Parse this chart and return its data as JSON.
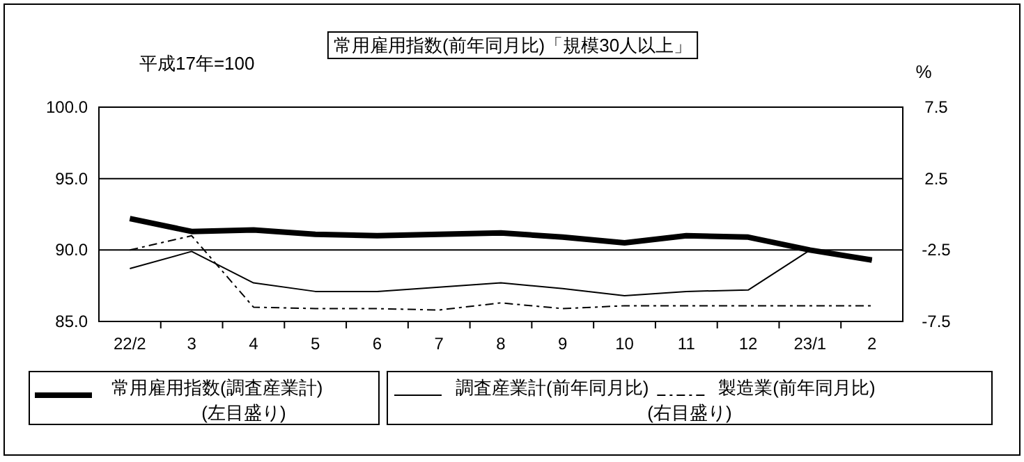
{
  "chart_data": {
    "type": "line",
    "title": "常用雇用指数(前年同月比)「規模30人以上」",
    "ylabel": "平成17年=100",
    "y2label": "%",
    "categories": [
      "22/2",
      "3",
      "4",
      "5",
      "6",
      "7",
      "8",
      "9",
      "10",
      "11",
      "12",
      "23/1",
      "2"
    ],
    "ylim": [
      85,
      100
    ],
    "yticks": [
      {
        "value": 85,
        "label": "85.0"
      },
      {
        "value": 90,
        "label": "90.0"
      },
      {
        "value": 95,
        "label": "95.0"
      },
      {
        "value": 100,
        "label": "100.0"
      }
    ],
    "y2lim": [
      -7.5,
      7.5
    ],
    "y2ticks": [
      -7.5,
      -2.5,
      2.5,
      7.5
    ],
    "grid": "y",
    "legend": "bottom",
    "marker": "none",
    "annotations": [
      "(左目盛り)",
      "(右目盛り)"
    ],
    "series": [
      {
        "name": "常用雇用指数(調査産業計)",
        "color": "#000000",
        "line_style": "solid",
        "values": [
          92.2,
          91.3,
          91.4,
          91.1,
          91.0,
          91.1,
          91.2,
          90.9,
          90.5,
          91.0,
          90.9,
          90.0,
          89.3
        ]
      },
      {
        "name": "調査産業計(前年同月比)",
        "color": "#000000",
        "axis": "y2",
        "line_style": "solid",
        "values": [
          -3.8,
          -2.6,
          -4.8,
          -5.4,
          -5.4,
          -5.1,
          -4.8,
          -5.2,
          -5.7,
          -5.4,
          -5.3,
          -2.5,
          -3.2
        ]
      },
      {
        "name": "製造業(前年同月比)",
        "color": "#000000",
        "axis": "y2",
        "line_style": "dashed",
        "values": [
          -2.5,
          -1.5,
          -6.5,
          -6.6,
          -6.6,
          -6.7,
          -6.2,
          -6.6,
          -6.4,
          -6.4,
          -6.4,
          -6.4,
          -6.4
        ]
      }
    ]
  }
}
